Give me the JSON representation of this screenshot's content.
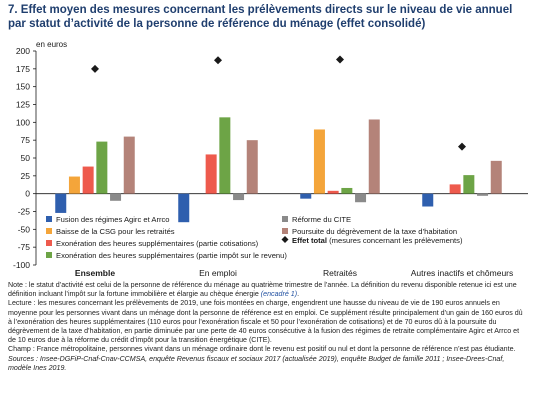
{
  "title_line1": "7. Effet moyen des mesures concernant les prélèvements directs sur le niveau de vie annuel",
  "title_line2": "par statut d’activité de la personne de référence du ménage (effet consolidé)",
  "chart_data": {
    "type": "bar",
    "ylabel": "en euros",
    "ylim": [
      -100,
      200
    ],
    "yticks": [
      -100,
      -75,
      -50,
      -25,
      0,
      25,
      50,
      75,
      100,
      125,
      150,
      175,
      200
    ],
    "categories": [
      "Ensemble",
      "En emploi",
      "Retraités",
      "Autres inactifs et chômeurs"
    ],
    "series": [
      {
        "name": "Fusion des régimes Agirc et Arrco",
        "color": "#2f5fae",
        "values": [
          -27,
          -40,
          -7,
          -18
        ]
      },
      {
        "name": "Baisse de la CSG pour les retraités",
        "color": "#f4a53a",
        "values": [
          24,
          0,
          90,
          0
        ]
      },
      {
        "name": "Exonération des heures supplémentaires (partie cotisations)",
        "color": "#ee5a4d",
        "values": [
          38,
          55,
          4,
          13
        ]
      },
      {
        "name": "Exonération des heures supplémentaires (partie impôt sur le revenu)",
        "color": "#6da446",
        "values": [
          73,
          107,
          8,
          26
        ]
      },
      {
        "name": "Réforme du CITE",
        "color": "#8a8a8a",
        "values": [
          -10,
          -9,
          -12,
          -3
        ]
      },
      {
        "name": "Poursuite du dégrèvement de la taxe d’habitation",
        "color": "#b48379",
        "values": [
          80,
          75,
          104,
          46
        ]
      }
    ],
    "markers": {
      "name": "Effet total",
      "name_suffix": " (mesures concernant les prélèvements)",
      "color": "#1a1a1a",
      "values": [
        175,
        187,
        188,
        66
      ]
    }
  },
  "notes": {
    "note": "Note : le statut d’activité est celui de la personne de référence du ménage au quatrième trimestre de l’année. La définition du revenu disponible retenue ici est une définition incluant l’impôt sur la fortune immobilière et élargie au chèque énergie",
    "note_link": "(encadré 1)",
    "lecture": "Lecture : les mesures concernant les prélèvements de 2019, une fois montées en charge, engendrent une hausse du niveau de vie de 190 euros annuels en moyenne pour les personnes vivant dans un ménage dont la personne de référence est en emploi. Ce supplément résulte principalement d’un gain de 160 euros dû à l’exonération des heures supplémentaires (110 euros pour l’exonération fiscale et 50 pour l’exonération de cotisations) et de 70 euros dû à la poursuite du dégrèvement de la taxe d’habitation, en partie diminuée par une perte de 40 euros consécutive à la fusion des régimes de retraite complémentaire Agirc et Arrco et de 10 euros due à la réforme du crédit d’impôt pour la transition énergétique (CITE).",
    "champ": "Champ : France métropolitaine, personnes vivant dans un ménage ordinaire dont le revenu est positif ou nul et dont la personne de référence n’est pas étudiante.",
    "sources": "Sources : Insee-DGFiP-Cnaf-Cnav-CCMSA, enquête Revenus fiscaux et sociaux 2017 (actualisée 2019), enquête Budget de famille 2011 ; Insee-Drees-Cnaf, modèle Ines 2019."
  }
}
